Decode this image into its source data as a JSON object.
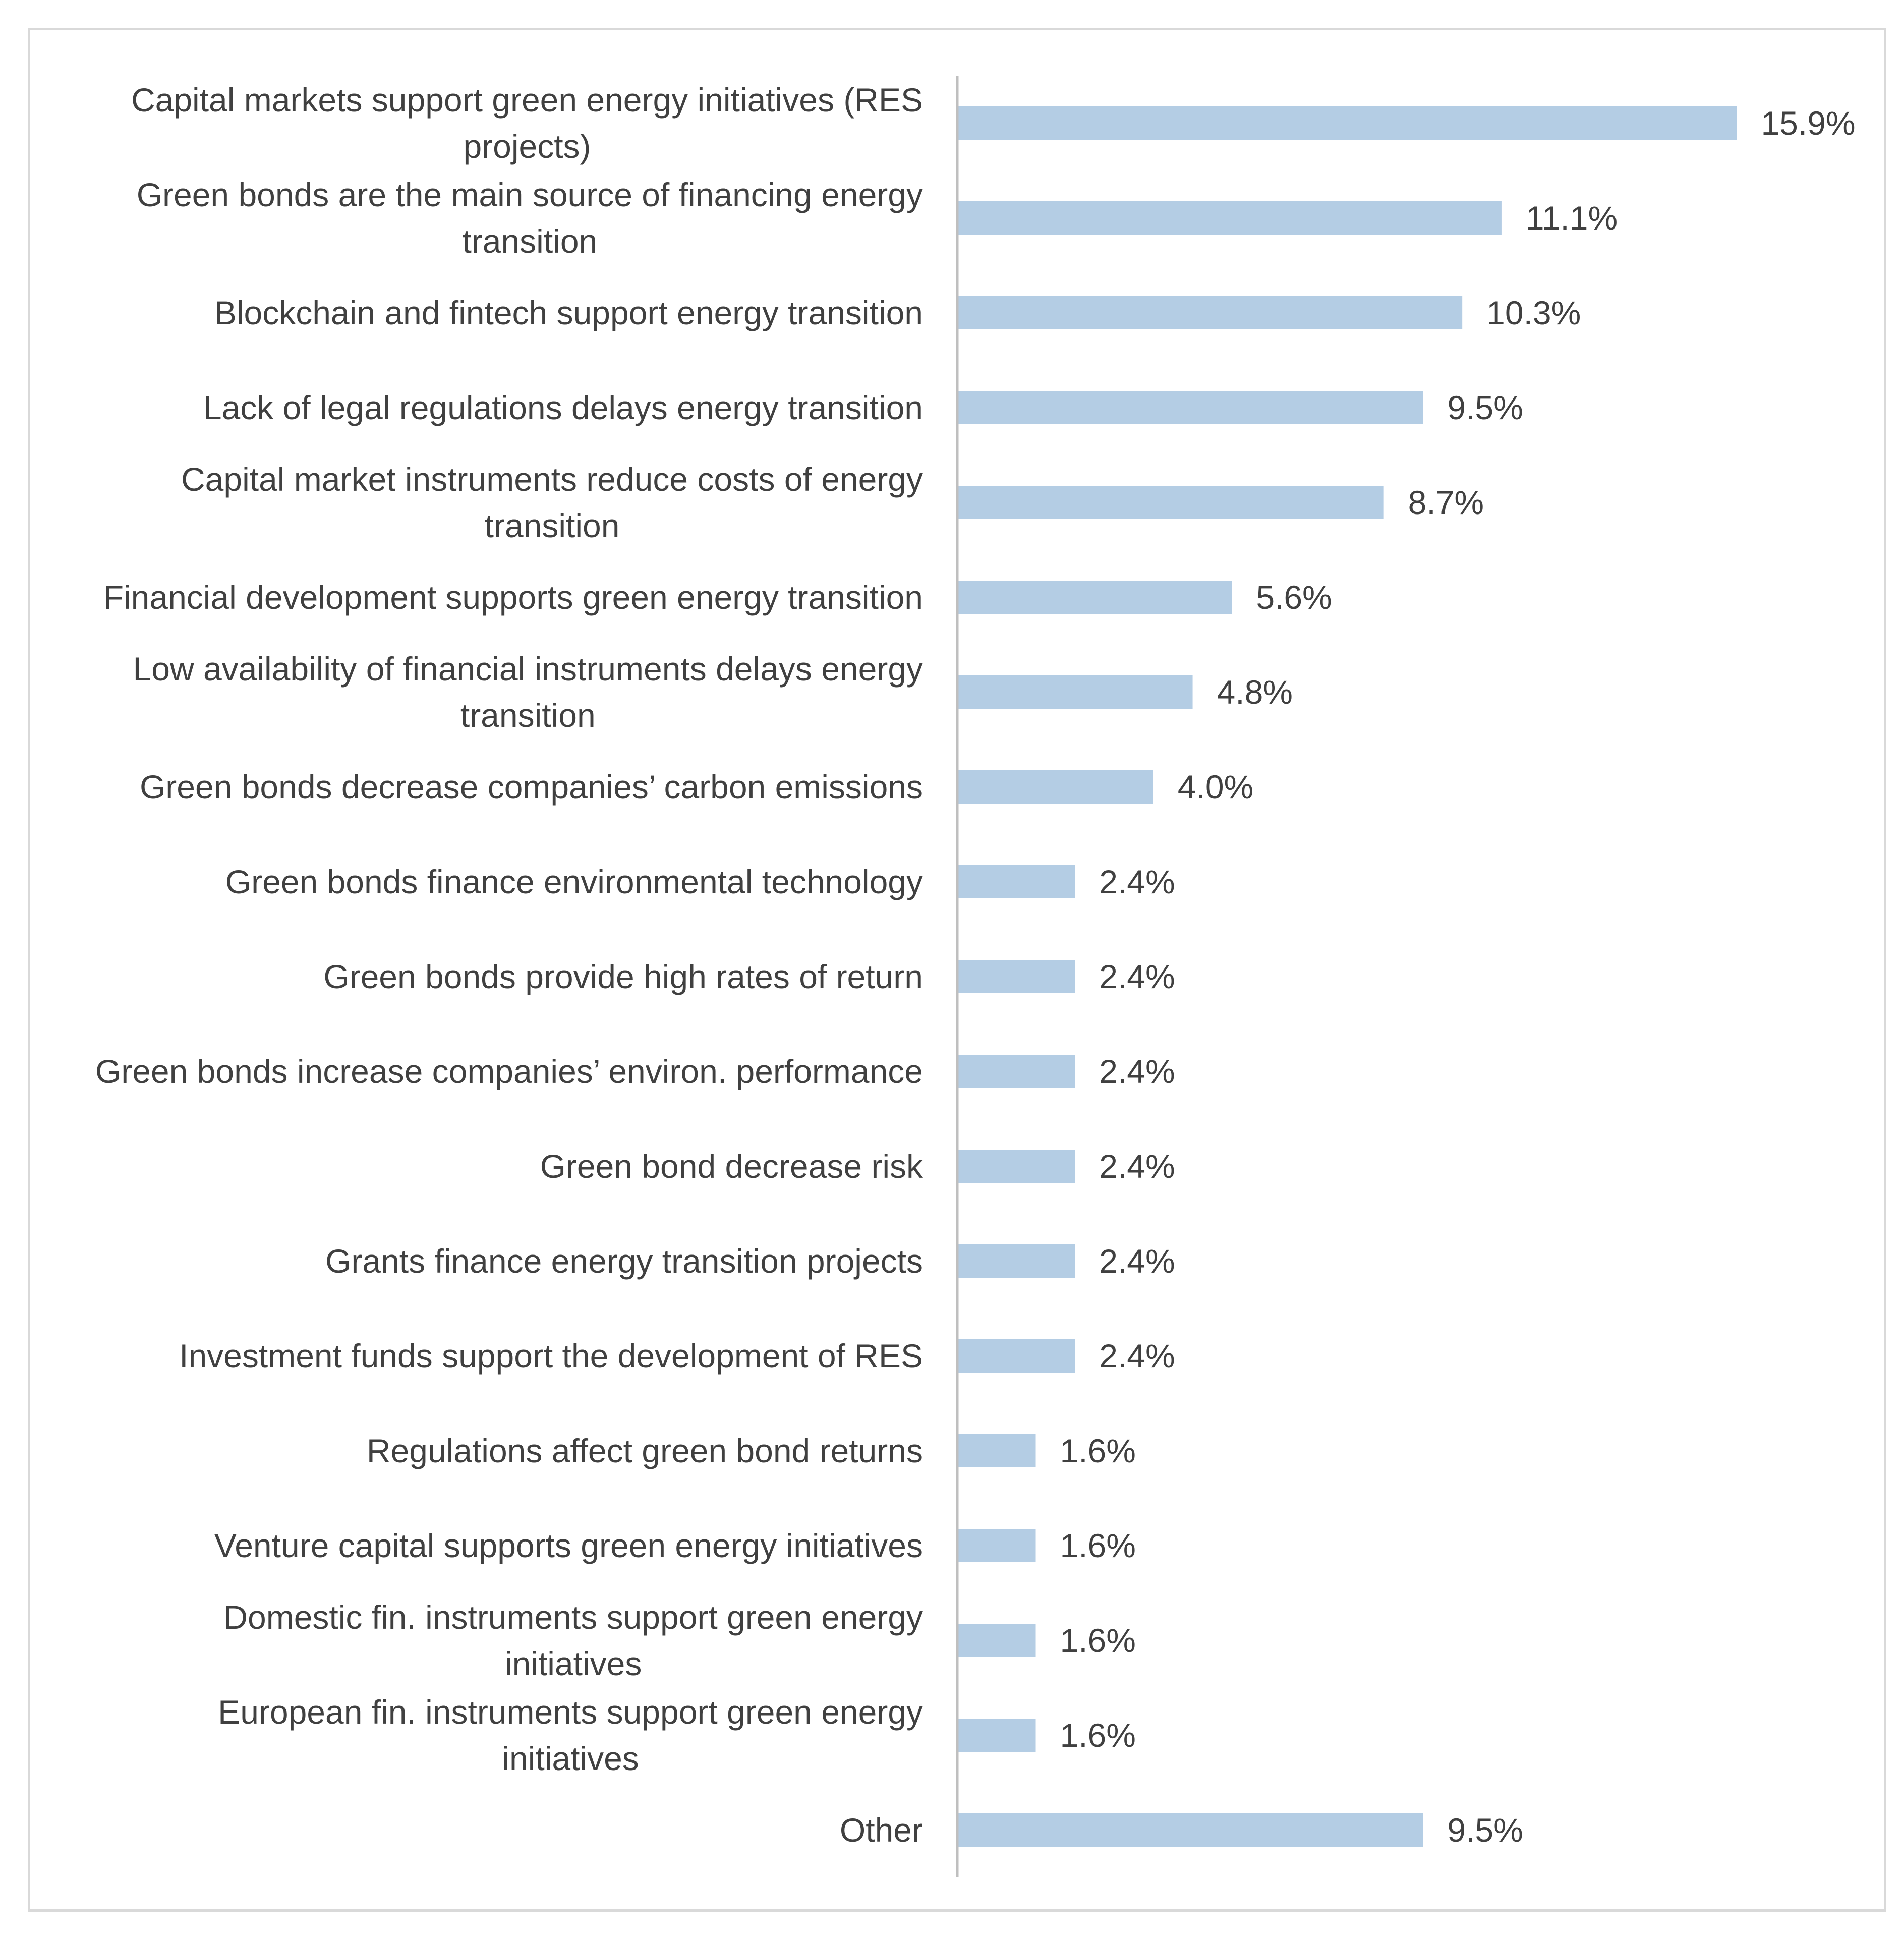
{
  "chart_data": {
    "type": "bar",
    "orientation": "horizontal",
    "title": "",
    "xlabel": "",
    "ylabel": "",
    "xlim": [
      0,
      16
    ],
    "grid": false,
    "legend": "none",
    "bar_color": "#b4cde4",
    "axis_color": "#bfbfbf",
    "text_color": "#404040",
    "categories": [
      [
        "Capital markets support green energy initiatives (RES",
        "projects)"
      ],
      [
        "Green bonds are the main source of financing energy",
        "transition"
      ],
      [
        "Blockchain and fintech support energy transition"
      ],
      [
        "Lack of legal regulations delays energy transition"
      ],
      [
        "Capital market instruments reduce costs of energy",
        "transition"
      ],
      [
        "Financial development supports green energy transition"
      ],
      [
        "Low availability of financial instruments delays energy",
        "transition"
      ],
      [
        "Green bonds decrease companies’ carbon emissions"
      ],
      [
        "Green bonds finance environmental technology"
      ],
      [
        "Green bonds provide high rates of return"
      ],
      [
        "Green bonds increase companies’ environ. performance"
      ],
      [
        "Green bond decrease risk"
      ],
      [
        "Grants finance energy transition projects"
      ],
      [
        "Investment funds support the development of RES"
      ],
      [
        "Regulations  affect green bond returns"
      ],
      [
        "Venture capital supports green energy initiatives"
      ],
      [
        "Domestic fin. instruments support green energy",
        "initiatives"
      ],
      [
        "European fin. instruments support green energy",
        "initiatives"
      ],
      [
        "Other"
      ]
    ],
    "values": [
      15.9,
      11.1,
      10.3,
      9.5,
      8.7,
      5.6,
      4.8,
      4.0,
      2.4,
      2.4,
      2.4,
      2.4,
      2.4,
      2.4,
      1.6,
      1.6,
      1.6,
      1.6,
      9.5
    ],
    "value_labels": [
      "15.9%",
      "11.1%",
      "10.3%",
      "9.5%",
      "8.7%",
      "5.6%",
      "4.8%",
      "4.0%",
      "2.4%",
      "2.4%",
      "2.4%",
      "2.4%",
      "2.4%",
      "2.4%",
      "1.6%",
      "1.6%",
      "1.6%",
      "1.6%",
      "9.5%"
    ]
  }
}
